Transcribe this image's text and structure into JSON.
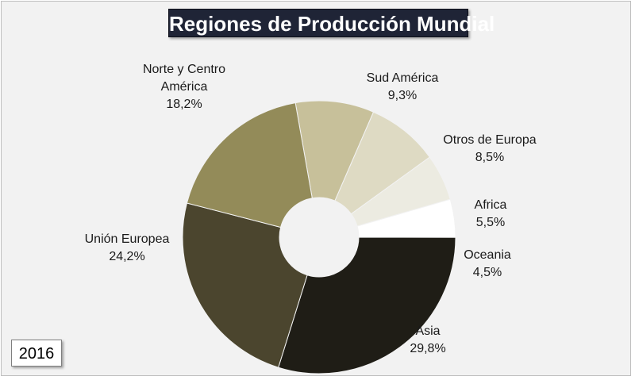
{
  "year_label": "2016",
  "chart_data": {
    "type": "pie",
    "style": "doughnut",
    "title": "Regiones de Producción Mundial",
    "slices": [
      {
        "name_lines": [
          "Sud América"
        ],
        "value_label": "9,3%",
        "value": 9.3,
        "color": "#c7c09a"
      },
      {
        "name_lines": [
          "Otros de Europa"
        ],
        "value_label": "8,5%",
        "value": 8.5,
        "color": "#dedac3"
      },
      {
        "name_lines": [
          "Africa"
        ],
        "value_label": "5,5%",
        "value": 5.5,
        "color": "#ecebe1"
      },
      {
        "name_lines": [
          "Oceania"
        ],
        "value_label": "4,5%",
        "value": 4.5,
        "color": "#ffffff"
      },
      {
        "name_lines": [
          "Asia"
        ],
        "value_label": "29,8%",
        "value": 29.8,
        "color": "#1f1d16"
      },
      {
        "name_lines": [
          "Unión Europea"
        ],
        "value_label": "24,2%",
        "value": 24.2,
        "color": "#4b452e"
      },
      {
        "name_lines": [
          "Norte y Centro",
          "América"
        ],
        "value_label": "18,2%",
        "value": 18.2,
        "color": "#938b59"
      }
    ]
  }
}
